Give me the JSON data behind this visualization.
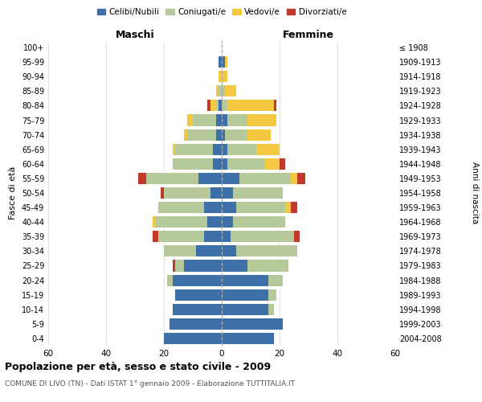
{
  "age_groups": [
    "0-4",
    "5-9",
    "10-14",
    "15-19",
    "20-24",
    "25-29",
    "30-34",
    "35-39",
    "40-44",
    "45-49",
    "50-54",
    "55-59",
    "60-64",
    "65-69",
    "70-74",
    "75-79",
    "80-84",
    "85-89",
    "90-94",
    "95-99",
    "100+"
  ],
  "birth_years": [
    "2004-2008",
    "1999-2003",
    "1994-1998",
    "1989-1993",
    "1984-1988",
    "1979-1983",
    "1974-1978",
    "1969-1973",
    "1964-1968",
    "1959-1963",
    "1954-1958",
    "1949-1953",
    "1944-1948",
    "1939-1943",
    "1934-1938",
    "1929-1933",
    "1924-1928",
    "1919-1923",
    "1914-1918",
    "1909-1913",
    "≤ 1908"
  ],
  "maschi": {
    "celibi": [
      20,
      18,
      17,
      16,
      17,
      13,
      9,
      6,
      5,
      6,
      4,
      8,
      3,
      3,
      2,
      2,
      1,
      0,
      0,
      1,
      0
    ],
    "coniugati": [
      0,
      0,
      0,
      0,
      2,
      3,
      11,
      16,
      18,
      16,
      16,
      18,
      14,
      13,
      10,
      8,
      1,
      1,
      0,
      0,
      0
    ],
    "vedovi": [
      0,
      0,
      0,
      0,
      0,
      0,
      0,
      0,
      1,
      0,
      0,
      0,
      0,
      1,
      1,
      2,
      2,
      1,
      1,
      0,
      0
    ],
    "divorziati": [
      0,
      0,
      0,
      0,
      0,
      1,
      0,
      2,
      0,
      0,
      1,
      3,
      0,
      0,
      0,
      0,
      1,
      0,
      0,
      0,
      0
    ]
  },
  "femmine": {
    "nubili": [
      18,
      21,
      16,
      16,
      16,
      9,
      5,
      3,
      4,
      5,
      4,
      6,
      2,
      2,
      1,
      2,
      0,
      0,
      0,
      1,
      0
    ],
    "coniugate": [
      0,
      0,
      2,
      3,
      5,
      14,
      21,
      22,
      18,
      17,
      17,
      18,
      13,
      10,
      8,
      7,
      2,
      1,
      0,
      0,
      0
    ],
    "vedove": [
      0,
      0,
      0,
      0,
      0,
      0,
      0,
      0,
      0,
      2,
      0,
      2,
      5,
      8,
      8,
      10,
      16,
      4,
      2,
      1,
      0
    ],
    "divorziate": [
      0,
      0,
      0,
      0,
      0,
      0,
      0,
      2,
      0,
      2,
      0,
      3,
      2,
      0,
      0,
      0,
      1,
      0,
      0,
      0,
      0
    ]
  },
  "colors": {
    "celibi": "#3d6fa8",
    "coniugati": "#b5c99a",
    "vedovi": "#f5c842",
    "divorziati": "#c0392b"
  },
  "xlim": 60,
  "title": "Popolazione per età, sesso e stato civile - 2009",
  "subtitle": "COMUNE DI LIVO (TN) - Dati ISTAT 1° gennaio 2009 - Elaborazione TUTTITALIA.IT",
  "ylabel_left": "Fasce di età",
  "ylabel_right": "Anni di nascita",
  "xlabel_left": "Maschi",
  "xlabel_right": "Femmine"
}
